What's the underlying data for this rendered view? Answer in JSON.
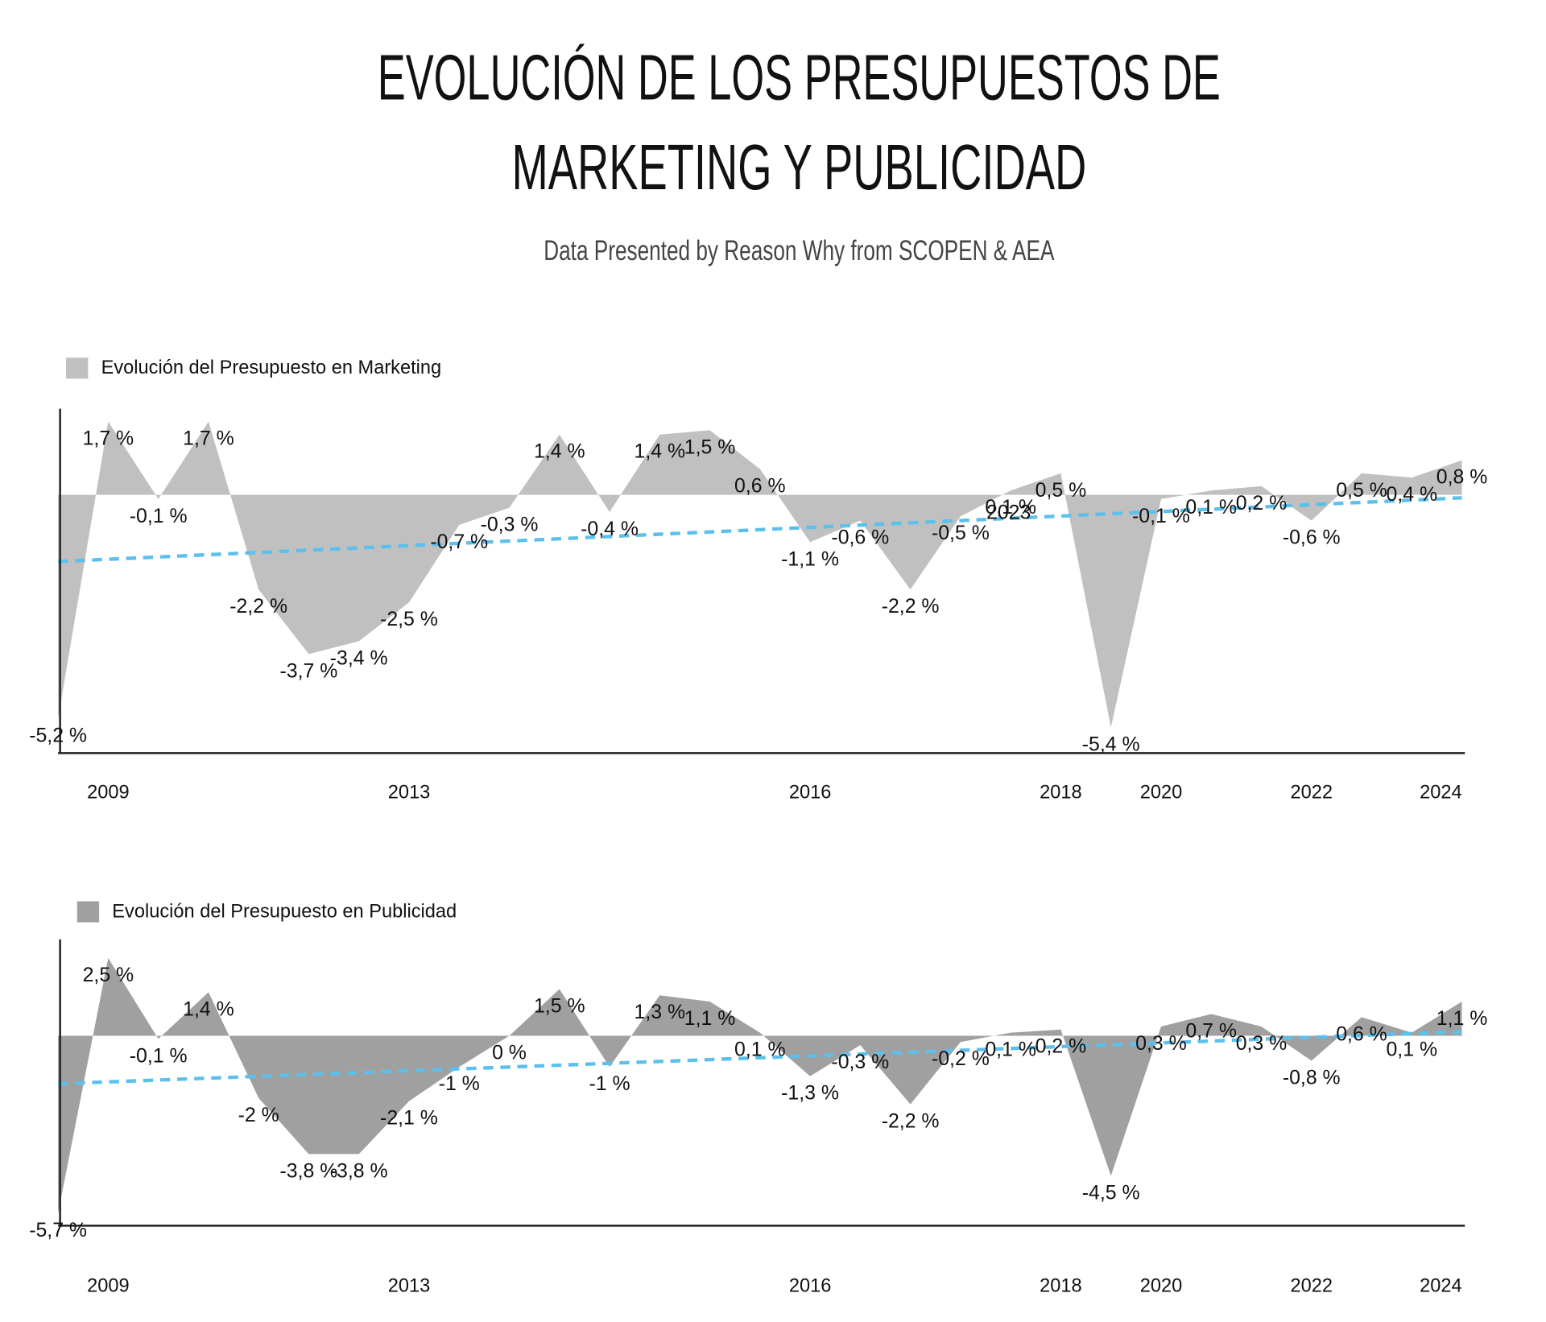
{
  "header": {
    "title": [
      "EVOLUCIÓN DE LOS PRESUPUESTOS DE",
      "MARKETING Y PUBLICIDAD"
    ],
    "subtitle": "Data Presented by Reason Why from SCOPEN & AEA"
  },
  "chart_data": [
    {
      "type": "area",
      "name": "Evolución del Presupuesto en Marketing",
      "color": "#c0c0c0",
      "categories": [
        null,
        "2009",
        null,
        null,
        null,
        null,
        null,
        "2013",
        null,
        null,
        null,
        null,
        null,
        null,
        null,
        "2016",
        null,
        null,
        null,
        null,
        "2018",
        null,
        "2020",
        null,
        null,
        "2022",
        null,
        null,
        "2024"
      ],
      "values": [
        -5.2,
        1.7,
        -0.1,
        1.7,
        -2.2,
        -3.7,
        -3.4,
        -2.5,
        -0.7,
        -0.3,
        1.4,
        -0.4,
        1.4,
        1.5,
        0.6,
        -1.1,
        -0.6,
        -2.2,
        -0.5,
        0.1,
        0.5,
        -5.4,
        -0.1,
        0.1,
        0.2,
        -0.6,
        0.5,
        0.4,
        0.8
      ],
      "value_labels": [
        "-5,2 %",
        "1,7 %",
        "-0,1 %",
        "1,7 %",
        "-2,2 %",
        "-3,7 %",
        "-3,4 %",
        "-2,5 %",
        "-0,7 %",
        "-0,3 %",
        "1,4 %",
        "-0,4 %",
        "1,4 %",
        "1,5 %",
        "0,6 %",
        "-1,1 %",
        "-0,6 %",
        "-2,2 %",
        "-0,5 %",
        "0,1 %",
        "0,5 %",
        "-5,4 %",
        "-0,1 %",
        "0,1 %",
        "0,2 %",
        "-0,6 %",
        "0,5 %",
        "0,4 %",
        "0,8 %"
      ],
      "annotation": "2023",
      "trend": {
        "color": "#5bc0eb",
        "values": [
          -1.55,
          -0.07
        ]
      },
      "ylim": [
        -6,
        2
      ]
    },
    {
      "type": "area",
      "name": "Evolución del Presupuesto en Publicidad",
      "color": "#a0a0a0",
      "categories": [
        null,
        "2009",
        null,
        null,
        null,
        null,
        null,
        "2013",
        null,
        null,
        null,
        null,
        null,
        null,
        null,
        "2016",
        null,
        null,
        null,
        null,
        "2018",
        null,
        "2020",
        null,
        null,
        "2022",
        null,
        null,
        "2024"
      ],
      "values": [
        -5.7,
        2.5,
        -0.1,
        1.4,
        -2,
        -3.8,
        -3.8,
        -2.1,
        -1,
        0,
        1.5,
        -1,
        1.3,
        1.1,
        0.1,
        -1.3,
        -0.3,
        -2.2,
        -0.2,
        0.1,
        0.2,
        -4.5,
        0.3,
        0.7,
        0.3,
        -0.8,
        0.6,
        0.1,
        1.1
      ],
      "value_labels": [
        "-5,7 %",
        "2,5 %",
        "-0,1 %",
        "1,4 %",
        "-2 %",
        "-3,8 %",
        "-3,8 %",
        "-2,1 %",
        "-1 %",
        "0 %",
        "1,5 %",
        "-1 %",
        "1,3 %",
        "1,1 %",
        "0,1 %",
        "-1,3 %",
        "-0,3 %",
        "-2,2 %",
        "-0,2 %",
        "0,1 %",
        "0,2 %",
        "-4,5 %",
        "0,3 %",
        "0,7 %",
        "0,3 %",
        "-0,8 %",
        "0,6 %",
        "0,1 %",
        "1,1 %"
      ],
      "trend": {
        "color": "#5bc0eb",
        "values": [
          -1.54,
          0.13
        ]
      },
      "ylim": [
        -6.1,
        3.1
      ]
    }
  ]
}
